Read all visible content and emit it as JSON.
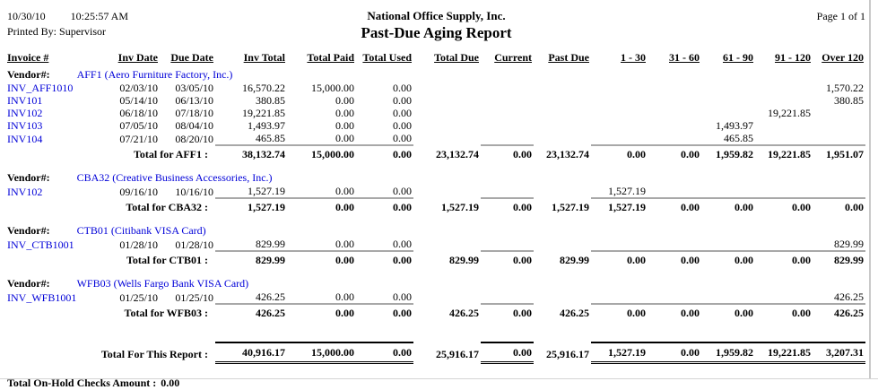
{
  "header": {
    "date": "10/30/10",
    "time": "10:25:57 AM",
    "printed_by_label": "Printed By:",
    "printed_by": "Supervisor",
    "company": "National Office Supply, Inc.",
    "report_title": "Past-Due Aging Report",
    "page": "Page 1 of 1"
  },
  "colors": {
    "link_blue": "#0000d8",
    "rule_gray": "#a8a8a8"
  },
  "table": {
    "columns": [
      "Invoice #",
      "Inv Date",
      "Due Date",
      "Inv Total",
      "Total Paid",
      "Total Used",
      "Total Due",
      "Current",
      "Past Due",
      "1 - 30",
      "31 - 60",
      "61 - 90",
      "91 - 120",
      "Over 120"
    ],
    "vendor_label": "Vendor#:",
    "groups": [
      {
        "vendor_name": "AFF1 (Aero Furniture Factory, Inc.)",
        "rows": [
          {
            "invoice": "INV_AFF1010",
            "inv_date": "02/03/10",
            "due_date": "03/05/10",
            "inv_total": "16,570.22",
            "total_paid": "15,000.00",
            "total_used": "0.00",
            "total_due": "",
            "current": "",
            "past_due": "",
            "b1_30": "",
            "b31_60": "",
            "b61_90": "",
            "b91_120": "",
            "over_120": "1,570.22"
          },
          {
            "invoice": "INV101",
            "inv_date": "05/14/10",
            "due_date": "06/13/10",
            "inv_total": "380.85",
            "total_paid": "0.00",
            "total_used": "0.00",
            "total_due": "",
            "current": "",
            "past_due": "",
            "b1_30": "",
            "b31_60": "",
            "b61_90": "",
            "b91_120": "",
            "over_120": "380.85"
          },
          {
            "invoice": "INV102",
            "inv_date": "06/18/10",
            "due_date": "07/18/10",
            "inv_total": "19,221.85",
            "total_paid": "0.00",
            "total_used": "0.00",
            "total_due": "",
            "current": "",
            "past_due": "",
            "b1_30": "",
            "b31_60": "",
            "b61_90": "",
            "b91_120": "19,221.85",
            "over_120": ""
          },
          {
            "invoice": "INV103",
            "inv_date": "07/05/10",
            "due_date": "08/04/10",
            "inv_total": "1,493.97",
            "total_paid": "0.00",
            "total_used": "0.00",
            "total_due": "",
            "current": "",
            "past_due": "",
            "b1_30": "",
            "b31_60": "",
            "b61_90": "1,493.97",
            "b91_120": "",
            "over_120": ""
          },
          {
            "invoice": "INV104",
            "inv_date": "07/21/10",
            "due_date": "08/20/10",
            "inv_total": "465.85",
            "total_paid": "0.00",
            "total_used": "0.00",
            "total_due": "",
            "current": "",
            "past_due": "",
            "b1_30": "",
            "b31_60": "",
            "b61_90": "465.85",
            "b91_120": "",
            "over_120": ""
          }
        ],
        "total_label": "Total for AFF1 :",
        "total": {
          "inv_total": "38,132.74",
          "total_paid": "15,000.00",
          "total_used": "0.00",
          "total_due": "23,132.74",
          "current": "0.00",
          "past_due": "23,132.74",
          "b1_30": "0.00",
          "b31_60": "0.00",
          "b61_90": "1,959.82",
          "b91_120": "19,221.85",
          "over_120": "1,951.07"
        }
      },
      {
        "vendor_name": "CBA32 (Creative Business Accessories, Inc.)",
        "rows": [
          {
            "invoice": "INV102",
            "inv_date": "09/16/10",
            "due_date": "10/16/10",
            "inv_total": "1,527.19",
            "total_paid": "0.00",
            "total_used": "0.00",
            "total_due": "",
            "current": "",
            "past_due": "",
            "b1_30": "1,527.19",
            "b31_60": "",
            "b61_90": "",
            "b91_120": "",
            "over_120": ""
          }
        ],
        "total_label": "Total for CBA32 :",
        "total": {
          "inv_total": "1,527.19",
          "total_paid": "0.00",
          "total_used": "0.00",
          "total_due": "1,527.19",
          "current": "0.00",
          "past_due": "1,527.19",
          "b1_30": "1,527.19",
          "b31_60": "0.00",
          "b61_90": "0.00",
          "b91_120": "0.00",
          "over_120": "0.00"
        }
      },
      {
        "vendor_name": "CTB01 (Citibank VISA Card)",
        "rows": [
          {
            "invoice": "INV_CTB1001",
            "inv_date": "01/28/10",
            "due_date": "01/28/10",
            "inv_total": "829.99",
            "total_paid": "0.00",
            "total_used": "0.00",
            "total_due": "",
            "current": "",
            "past_due": "",
            "b1_30": "",
            "b31_60": "",
            "b61_90": "",
            "b91_120": "",
            "over_120": "829.99"
          }
        ],
        "total_label": "Total for CTB01 :",
        "total": {
          "inv_total": "829.99",
          "total_paid": "0.00",
          "total_used": "0.00",
          "total_due": "829.99",
          "current": "0.00",
          "past_due": "829.99",
          "b1_30": "0.00",
          "b31_60": "0.00",
          "b61_90": "0.00",
          "b91_120": "0.00",
          "over_120": "829.99"
        }
      },
      {
        "vendor_name": "WFB03 (Wells Fargo Bank VISA Card)",
        "rows": [
          {
            "invoice": "INV_WFB1001",
            "inv_date": "01/25/10",
            "due_date": "01/25/10",
            "inv_total": "426.25",
            "total_paid": "0.00",
            "total_used": "0.00",
            "total_due": "",
            "current": "",
            "past_due": "",
            "b1_30": "",
            "b31_60": "",
            "b61_90": "",
            "b91_120": "",
            "over_120": "426.25"
          }
        ],
        "total_label": "Total for WFB03 :",
        "total": {
          "inv_total": "426.25",
          "total_paid": "0.00",
          "total_used": "0.00",
          "total_due": "426.25",
          "current": "0.00",
          "past_due": "426.25",
          "b1_30": "0.00",
          "b31_60": "0.00",
          "b61_90": "0.00",
          "b91_120": "0.00",
          "over_120": "426.25"
        }
      }
    ],
    "report_total_label": "Total For This Report :",
    "report_total": {
      "inv_total": "40,916.17",
      "total_paid": "15,000.00",
      "total_used": "0.00",
      "total_due": "25,916.17",
      "current": "0.00",
      "past_due": "25,916.17",
      "b1_30": "1,527.19",
      "b31_60": "0.00",
      "b61_90": "1,959.82",
      "b91_120": "19,221.85",
      "over_120": "3,207.31"
    },
    "on_hold_label": "Total On-Hold Checks Amount :",
    "on_hold_value": "0.00"
  }
}
